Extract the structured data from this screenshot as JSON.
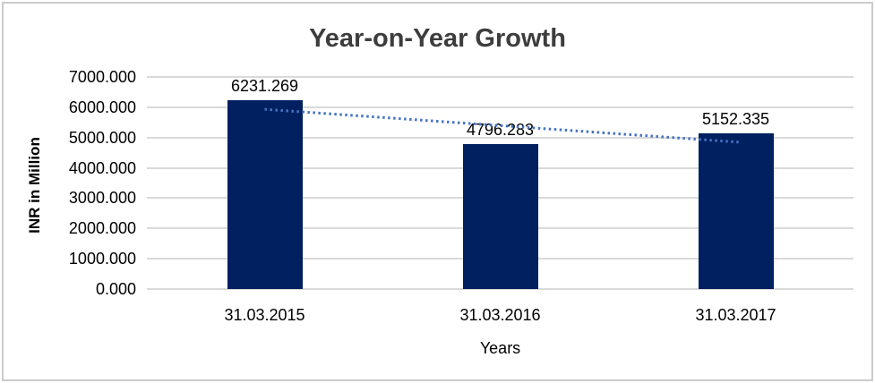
{
  "frame": {
    "border_color": "#cbcbcb",
    "background": "#ffffff"
  },
  "chart_data": {
    "type": "bar",
    "title": "Year-on-Year Growth",
    "xlabel": "Years",
    "ylabel": "INR in Million",
    "categories": [
      "31.03.2015",
      "31.03.2016",
      "31.03.2017"
    ],
    "series": [
      {
        "name": "INR in Million",
        "values": [
          6231.269,
          4796.283,
          5152.335
        ]
      }
    ],
    "data_labels": [
      "6231.269",
      "4796.283",
      "5152.335"
    ],
    "ylim": [
      0,
      7000
    ],
    "ytick_labels": [
      "7000.000",
      "6000.000",
      "5000.000",
      "4000.000",
      "3000.000",
      "2000.000",
      "1000.000",
      "0.000"
    ],
    "ytick_values": [
      7000,
      6000,
      5000,
      4000,
      3000,
      2000,
      1000,
      0
    ],
    "grid": true,
    "legend_position": "none",
    "trendline": {
      "kind": "linear",
      "style": "dotted"
    },
    "colors": {
      "bar": "#002060",
      "trendline": "#4472C4",
      "gridline": "#D9D9D9",
      "title_text": "#3d3d3d",
      "axis_text": "#000000"
    }
  }
}
